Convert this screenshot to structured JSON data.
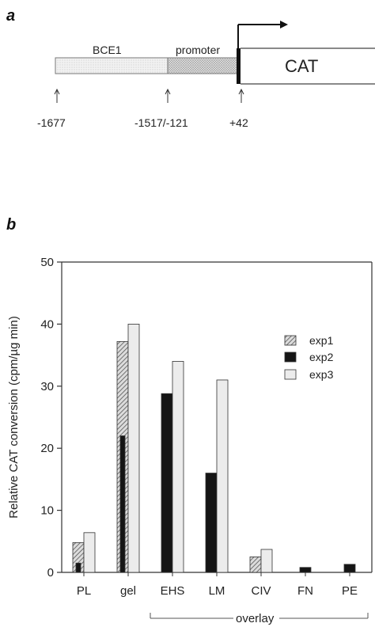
{
  "panel_a": {
    "letter": "a",
    "labels": {
      "bce1": "BCE1",
      "promoter": "promoter",
      "cat": "CAT"
    },
    "coords": [
      "-1677",
      "-1517/-121",
      "+42"
    ]
  },
  "panel_b": {
    "letter": "b"
  },
  "bracket_label": "overlay",
  "chart_data": {
    "type": "bar",
    "ylabel": "Relative CAT conversion (cpm/µg min)",
    "ylim": [
      0,
      50
    ],
    "yticks": [
      0,
      10,
      20,
      30,
      40,
      50
    ],
    "categories": [
      "PL",
      "gel",
      "EHS",
      "LM",
      "CIV",
      "FN",
      "PE"
    ],
    "series": [
      {
        "name": "exp1",
        "fill": "hatched",
        "values": [
          4.8,
          37.2,
          null,
          null,
          2.5,
          null,
          null
        ]
      },
      {
        "name": "exp2",
        "fill": "#151515",
        "values": [
          1.5,
          22.0,
          28.8,
          16.0,
          null,
          0.8,
          1.3
        ]
      },
      {
        "name": "exp3",
        "fill": "#ececec",
        "values": [
          6.4,
          40.0,
          34.0,
          31.0,
          3.7,
          null,
          null
        ]
      }
    ],
    "legend_position": "top-right"
  }
}
